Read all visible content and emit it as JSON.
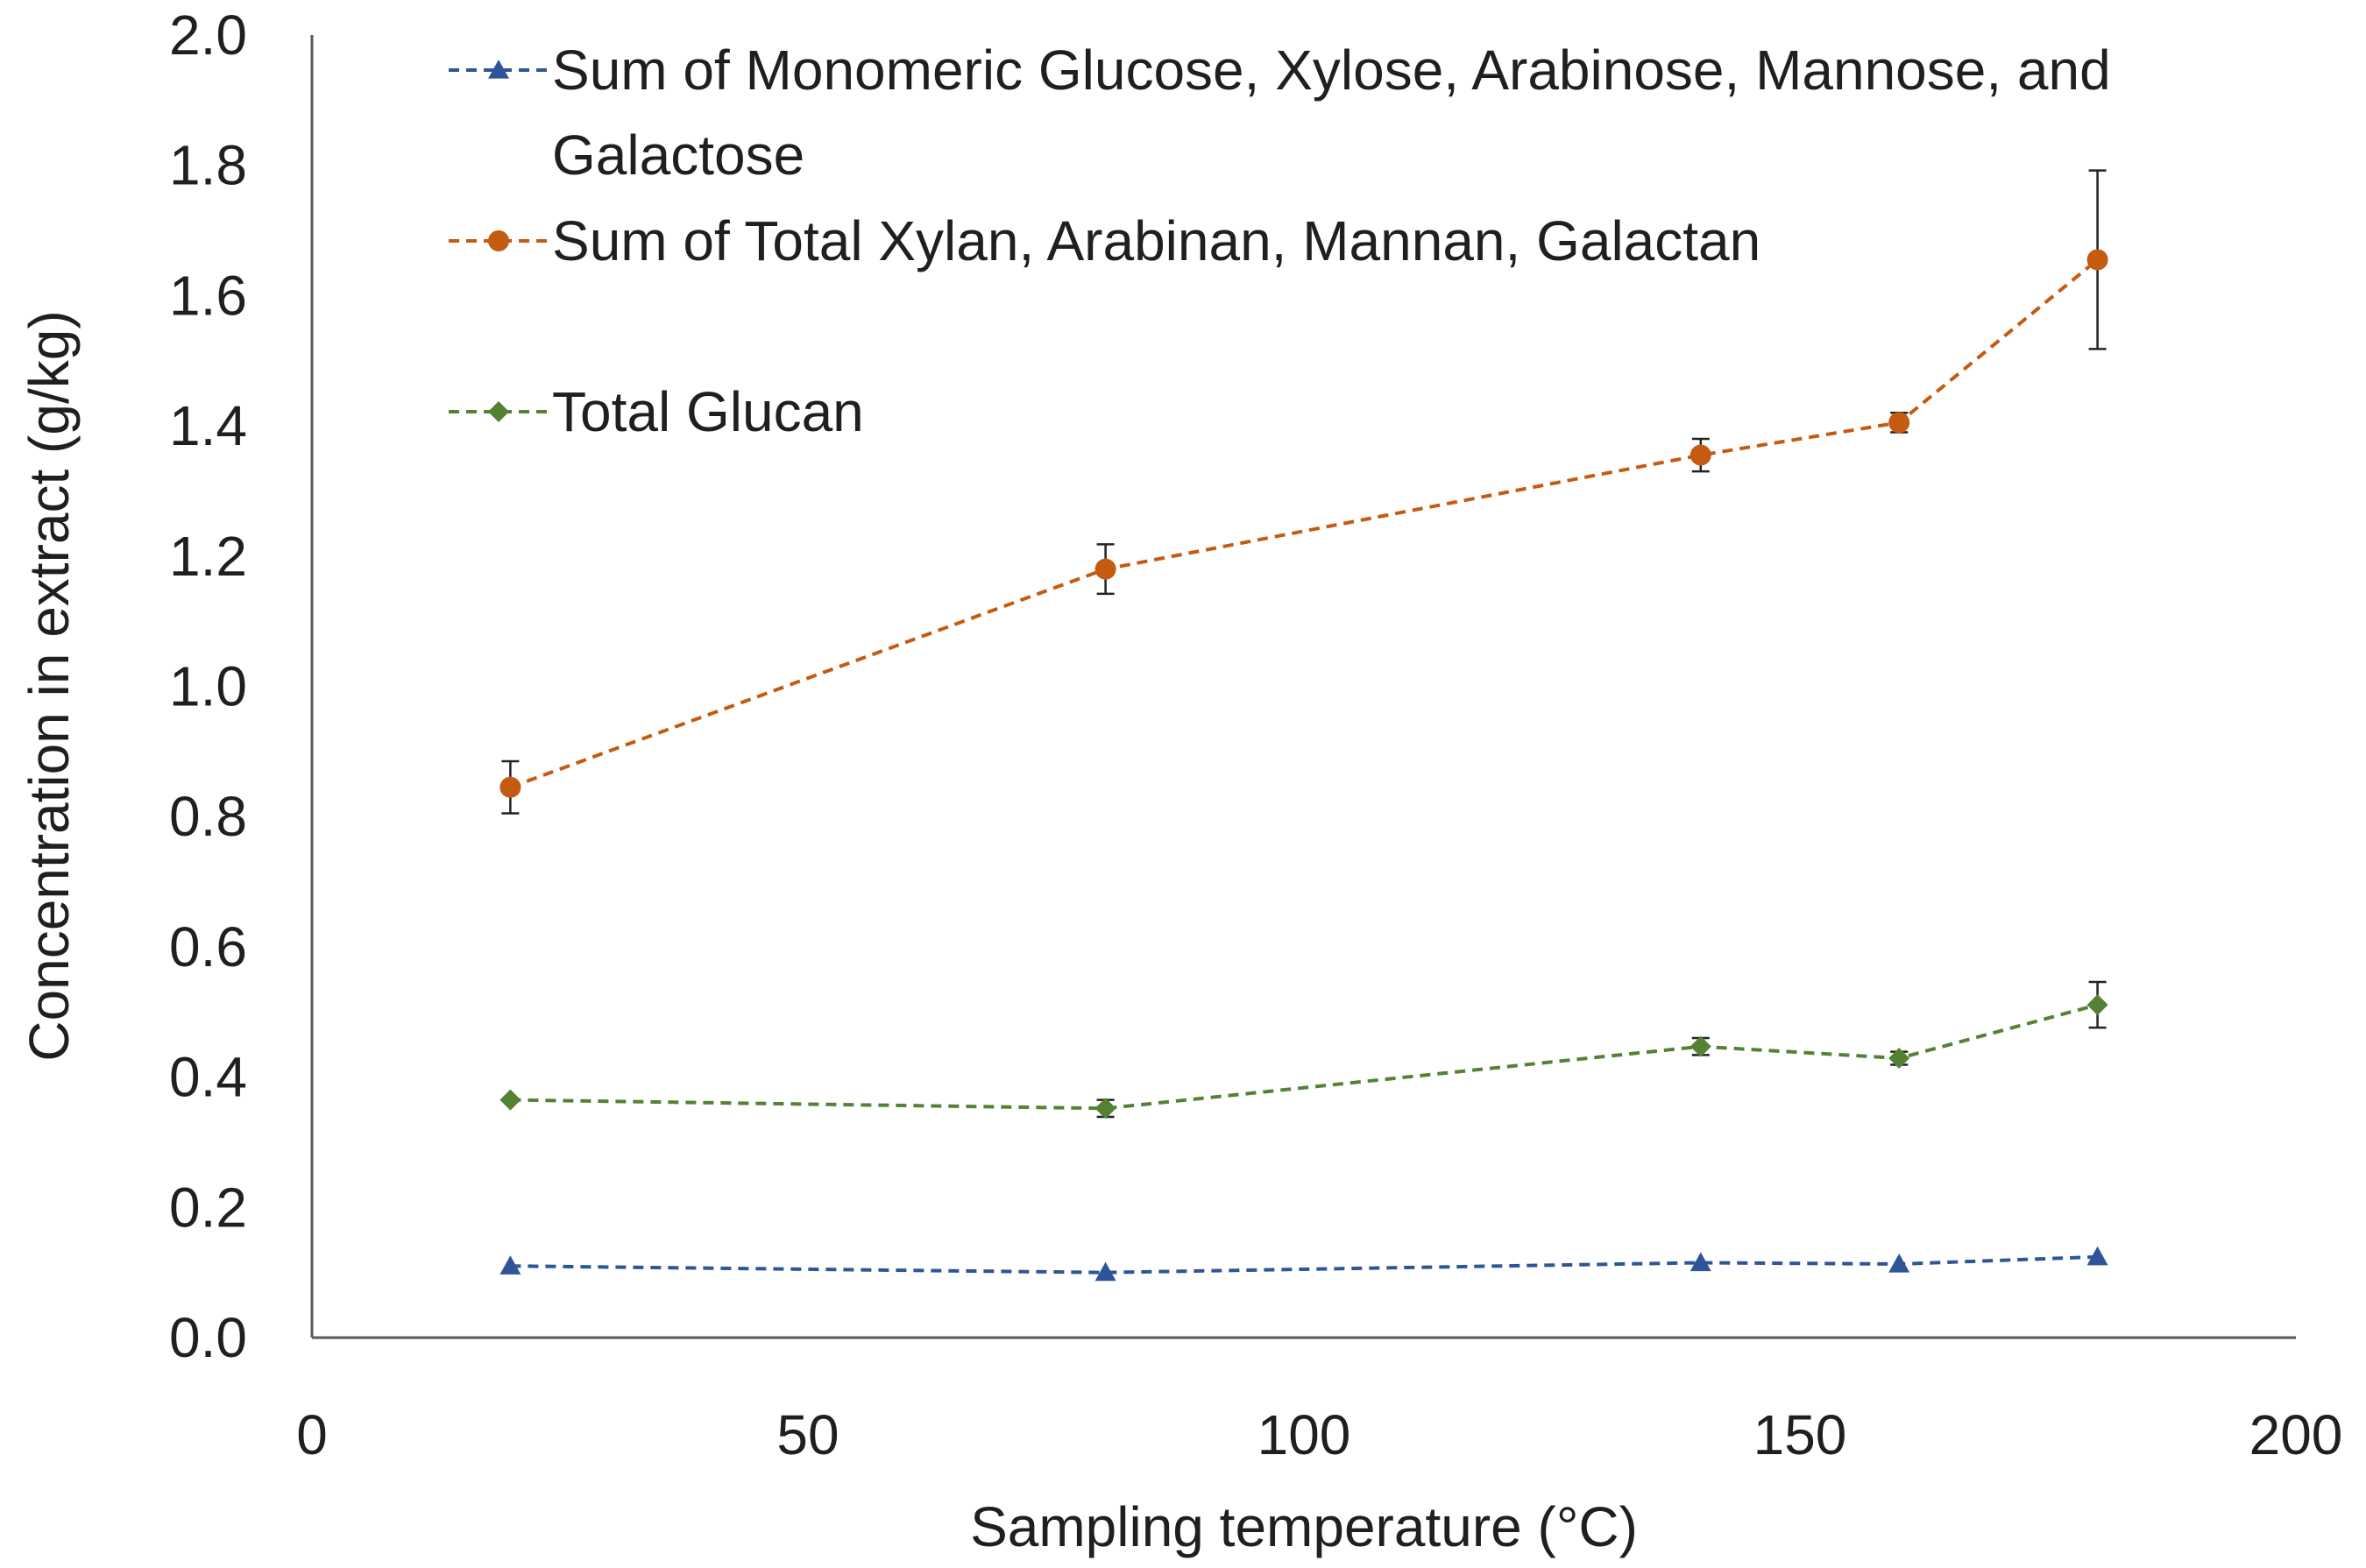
{
  "chart_data": {
    "type": "line",
    "xlabel": "Sampling temperature (°C)",
    "ylabel": "Concentration in extract (g/kg)",
    "xlim": [
      0,
      200
    ],
    "ylim": [
      0.0,
      2.0
    ],
    "x_ticks": [
      "0",
      "50",
      "100",
      "150",
      "200"
    ],
    "y_ticks": [
      "0.0",
      "0.2",
      "0.4",
      "0.6",
      "0.8",
      "1.0",
      "1.2",
      "1.4",
      "1.6",
      "1.8",
      "2.0"
    ],
    "grid": false,
    "legend_position": "top",
    "x": [
      20,
      80,
      140,
      160,
      180
    ],
    "series": [
      {
        "name": "Sum of Monomeric Glucose, Xylose, Arabinose, Mannose, and Galactose",
        "legend_lines": [
          "Sum of Monomeric Glucose, Xylose, Arabinose, Mannose, and",
          "Galactose"
        ],
        "color": "#2e5597",
        "marker": "triangle",
        "values": [
          0.11,
          0.1,
          0.115,
          0.113,
          0.124
        ],
        "errors": [
          0,
          0,
          0,
          0,
          0
        ]
      },
      {
        "name": "Sum of Total Xylan, Arabinan, Mannan, Galactan",
        "legend_lines": [
          "Sum of Total Xylan, Arabinan, Mannan, Galactan"
        ],
        "color": "#c55a11",
        "marker": "circle",
        "values": [
          0.845,
          1.18,
          1.355,
          1.405,
          1.655
        ],
        "errors": [
          0.04,
          0.038,
          0.025,
          0.015,
          0.137
        ]
      },
      {
        "name": "Total Glucan",
        "legend_lines": [
          "Total Glucan"
        ],
        "color": "#548235",
        "marker": "diamond",
        "values": [
          0.365,
          0.352,
          0.447,
          0.429,
          0.511
        ],
        "errors": [
          0,
          0.013,
          0.013,
          0.01,
          0.035
        ]
      }
    ]
  }
}
